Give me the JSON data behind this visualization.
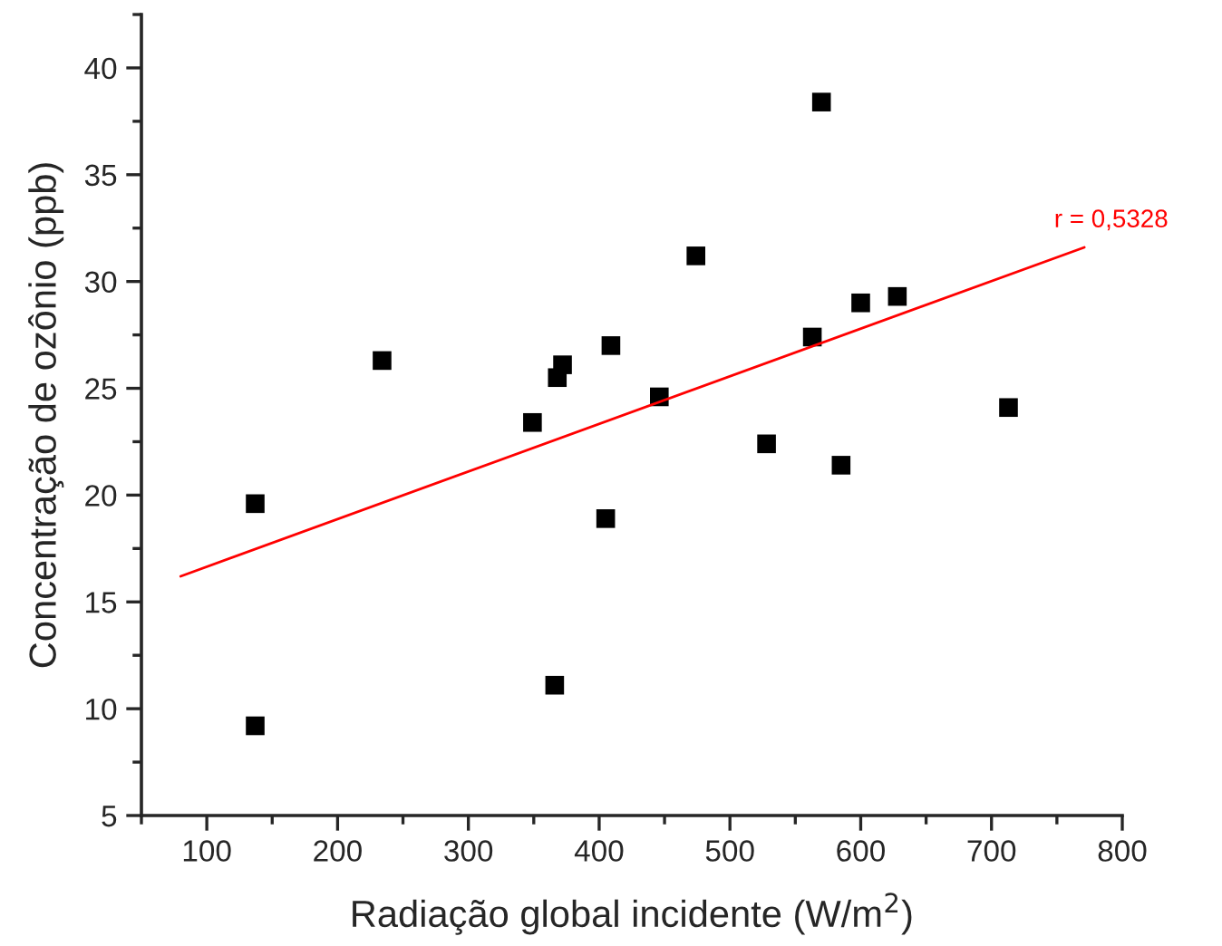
{
  "chart_data": {
    "type": "scatter",
    "xlabel": "Radiação global incidente (W/m$^{2}$)",
    "ylabel": "Concentração de ozônio (ppb)",
    "series": [
      {
        "color": "#000000",
        "marker": "square",
        "x": [
          137,
          137,
          234,
          349,
          368,
          372,
          409,
          405,
          366,
          446,
          474,
          570,
          563,
          600,
          628,
          528,
          585,
          713
        ],
        "values": [
          19.6,
          9.2,
          26.3,
          23.4,
          25.5,
          26.1,
          27.0,
          18.9,
          11.1,
          24.6,
          31.2,
          38.4,
          27.4,
          29.0,
          29.3,
          22.4,
          21.4,
          24.1
        ]
      },
      {
        "type": "line",
        "color": "#ff0000",
        "marker": "none",
        "line_style": "solid",
        "x": [
          80,
          771
        ],
        "values": [
          16.2,
          31.6
        ]
      }
    ],
    "annotations": [
      {
        "text": "r = 0,5328",
        "x": 771,
        "y": 31.6
      }
    ],
    "xlim": [
      50,
      800
    ],
    "ylim": [
      5,
      42.5
    ],
    "xticks": [
      100,
      {
        "value": 150,
        "label": null
      },
      200,
      {
        "value": 250,
        "label": null
      },
      300,
      {
        "value": 350,
        "label": null
      },
      400,
      {
        "value": 450,
        "label": null
      },
      500,
      {
        "value": 550,
        "label": null
      },
      600,
      {
        "value": 650,
        "label": null
      },
      700,
      {
        "value": 750,
        "label": null
      },
      800,
      {
        "value": 50,
        "label": null
      }
    ],
    "yticks": [
      5,
      {
        "value": 7.5,
        "label": null
      },
      10,
      {
        "value": 12.5,
        "label": null
      },
      15,
      {
        "value": 17.5,
        "label": null
      },
      20,
      {
        "value": 22.5,
        "label": null
      },
      25,
      {
        "value": 27.5,
        "label": null
      },
      30,
      {
        "value": 32.5,
        "label": null
      },
      35,
      {
        "value": 37.5,
        "label": null
      },
      40,
      {
        "value": 42.5,
        "label": null
      }
    ],
    "grid": false,
    "legend": false
  }
}
